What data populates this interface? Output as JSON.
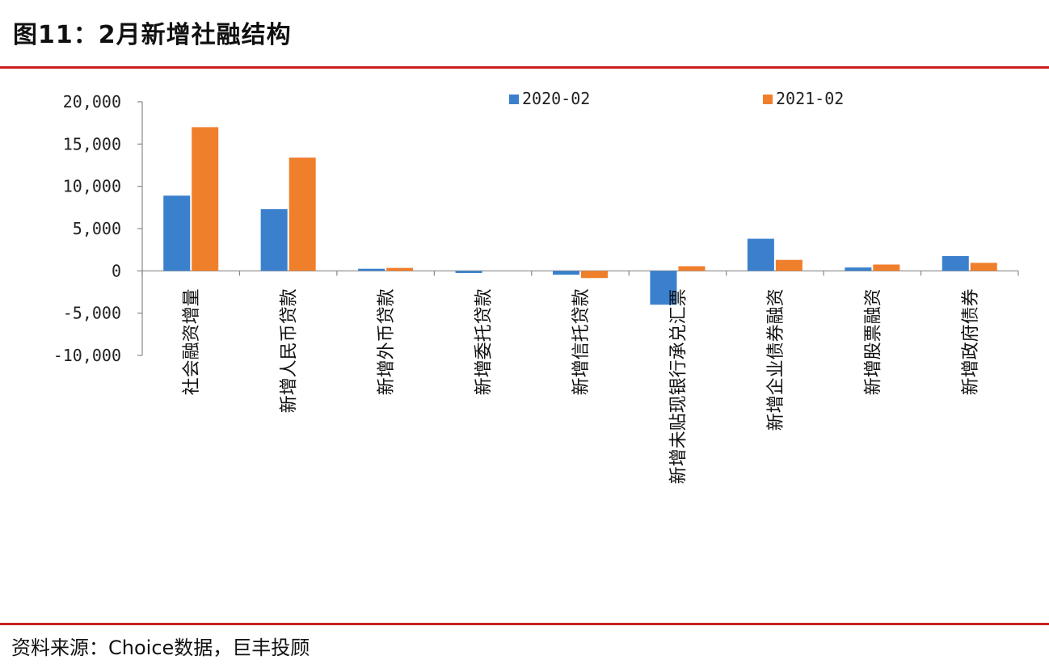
{
  "title": "图11：2月新增社融结构",
  "source": "资料来源：Choice数据，巨丰投顾",
  "chart_data": {
    "type": "bar",
    "categories": [
      "社会融资增量",
      "新增人民币贷款",
      "新增外币贷款",
      "新增委托贷款",
      "新增信托贷款",
      "新增未贴现银行承兑汇票",
      "新增企业债券融资",
      "新增股票融资",
      "新增政府债券"
    ],
    "series": [
      {
        "name": "2020-02",
        "values": [
          8900,
          7300,
          250,
          -250,
          -450,
          -4000,
          3800,
          400,
          1750
        ]
      },
      {
        "name": "2021-02",
        "values": [
          17000,
          13400,
          350,
          0,
          -850,
          550,
          1300,
          750,
          950
        ]
      }
    ],
    "ylim": [
      -10000,
      20000
    ],
    "yticks": [
      20000,
      15000,
      10000,
      5000,
      0,
      -5000,
      -10000
    ],
    "ytick_labels": [
      "20,000",
      "15,000",
      "10,000",
      "5,000",
      "0",
      "-5,000",
      "-10,000"
    ],
    "legend": "top",
    "grid": false,
    "colors": [
      "#3a80cc",
      "#f07f2c"
    ]
  }
}
